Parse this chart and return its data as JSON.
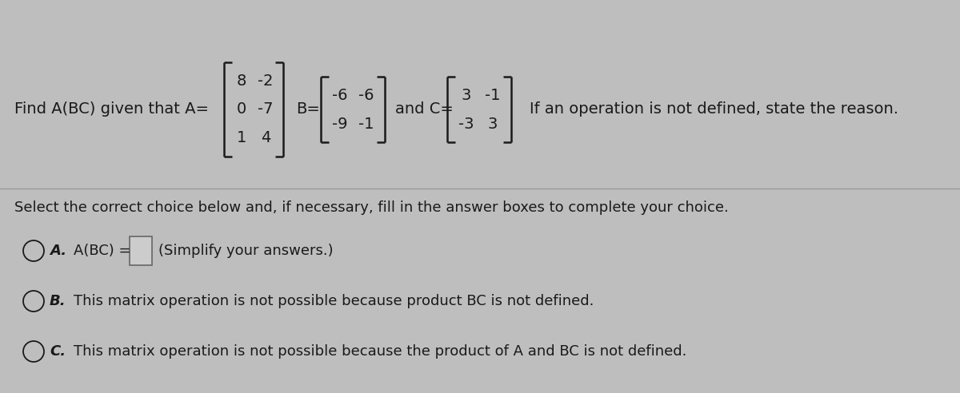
{
  "bg_color": "#bebebe",
  "title_text": "Find A(BC) given that A=",
  "matrix_A": [
    [
      "8",
      "-2"
    ],
    [
      "0",
      "-7"
    ],
    [
      "1",
      "4"
    ]
  ],
  "matrix_B_label": "B=",
  "matrix_B": [
    [
      "-6",
      "-6"
    ],
    [
      "-9",
      "-1"
    ]
  ],
  "and_C_label": "and C=",
  "matrix_C": [
    [
      "3",
      "-1"
    ],
    [
      "-3",
      "3"
    ]
  ],
  "note_text": "If an operation is not defined, state the reason.",
  "select_text": "Select the correct choice below and, if necessary, fill in the answer boxes to complete your choice.",
  "choice_A_label": "A.",
  "choice_A_text": "A(BC) =",
  "choice_A_suffix": "(Simplify your answers.)",
  "choice_B_label": "B.",
  "choice_B_text": "This matrix operation is not possible because product BC is not defined.",
  "choice_C_label": "C.",
  "choice_C_text": "This matrix operation is not possible because the product of A and BC is not defined.",
  "font_size_main": 14,
  "font_size_choices": 13,
  "text_color": "#1a1a1a",
  "divider_color": "#999999"
}
